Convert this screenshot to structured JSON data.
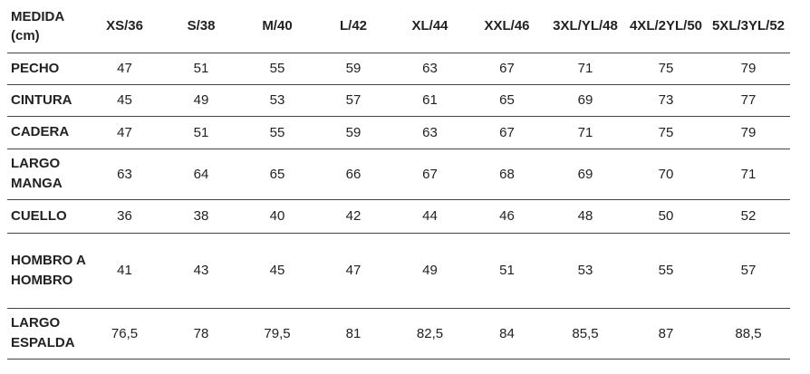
{
  "table": {
    "header": [
      "MEDIDA (cm)",
      "XS/36",
      "S/38",
      "M/40",
      "L/42",
      "XL/44",
      "XXL/46",
      "3XL/YL/48",
      "4XL/2YL/50",
      "5XL/3YL/52"
    ],
    "rows": [
      [
        "PECHO",
        "47",
        "51",
        "55",
        "59",
        "63",
        "67",
        "71",
        "75",
        "79"
      ],
      [
        "CINTURA",
        "45",
        "49",
        "53",
        "57",
        "61",
        "65",
        "69",
        "73",
        "77"
      ],
      [
        "CADERA",
        "47",
        "51",
        "55",
        "59",
        "63",
        "67",
        "71",
        "75",
        "79"
      ],
      [
        "LARGO MANGA",
        "63",
        "64",
        "65",
        "66",
        "67",
        "68",
        "69",
        "70",
        "71"
      ],
      [
        "CUELLO",
        "36",
        "38",
        "40",
        "42",
        "44",
        "46",
        "48",
        "50",
        "52"
      ],
      [
        "HOMBRO A HOMBRO",
        "41",
        "43",
        "45",
        "47",
        "49",
        "51",
        "53",
        "55",
        "57"
      ],
      [
        "LARGO ESPALDA",
        "76,5",
        "78",
        "79,5",
        "81",
        "82,5",
        "84",
        "85,5",
        "87",
        "88,5"
      ]
    ]
  }
}
